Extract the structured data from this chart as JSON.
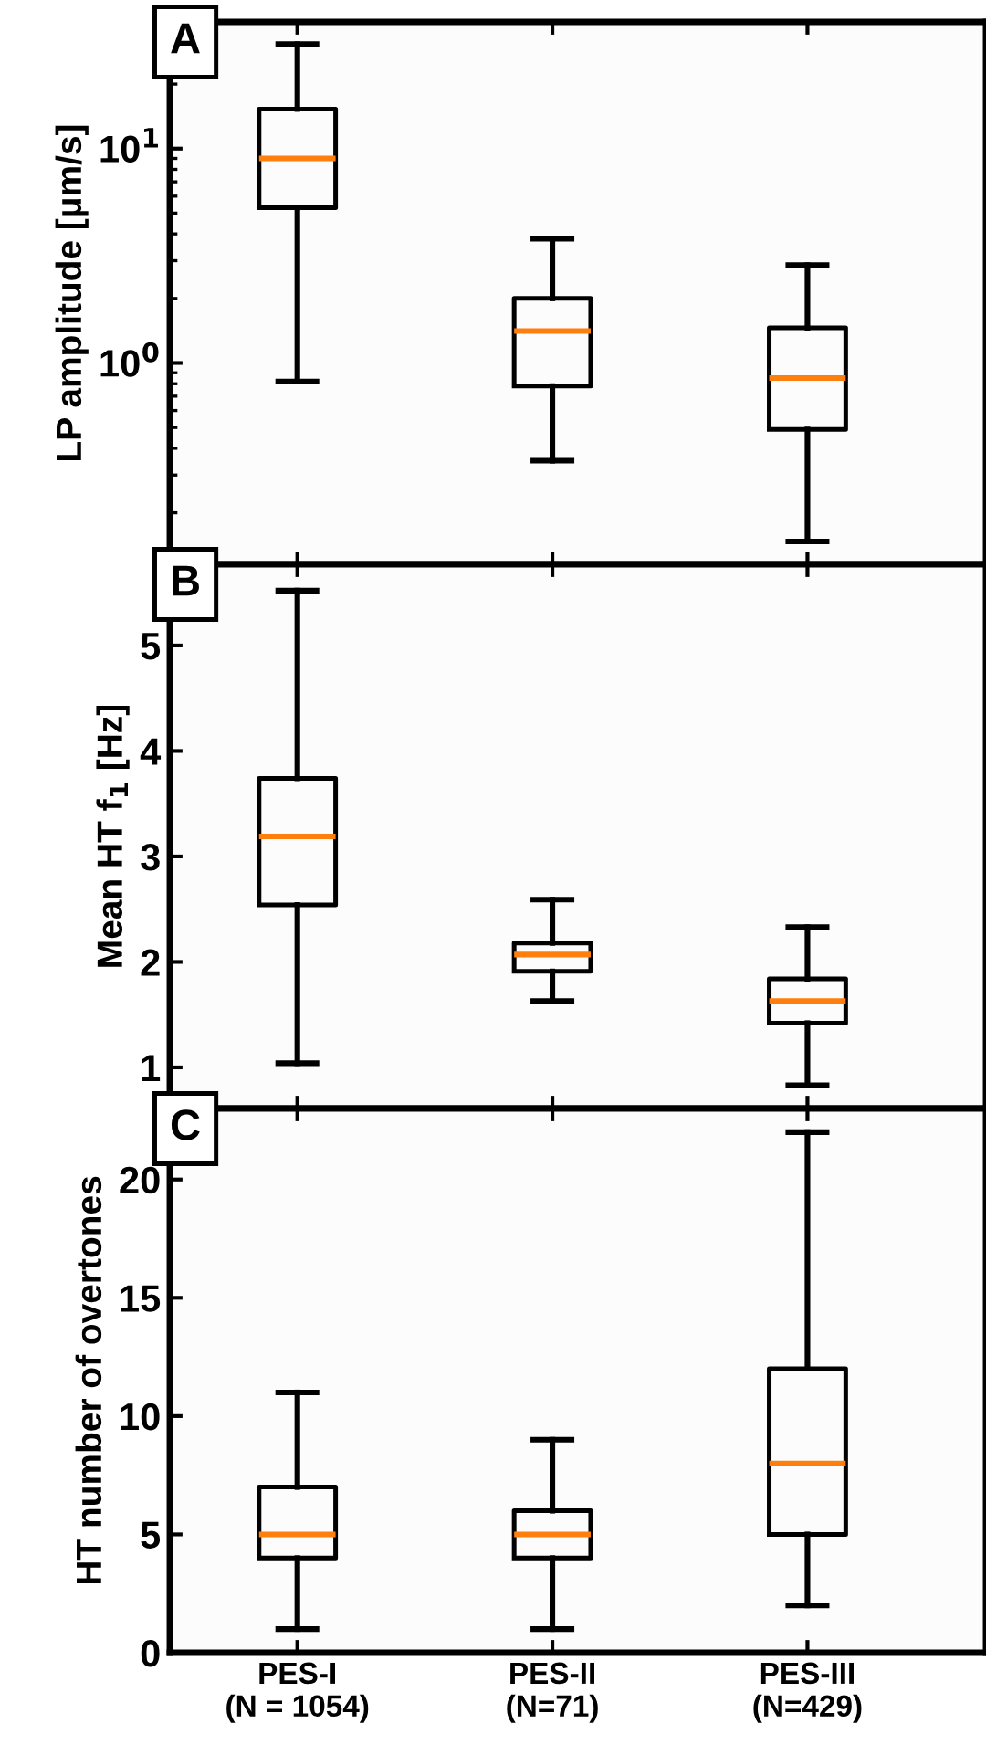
{
  "chart_data": [
    {
      "type": "box",
      "title": "A",
      "ylabel": "LP amplitude [μm/s]",
      "log": "y",
      "categories": [
        null,
        null,
        null
      ],
      "tick_labels": "y",
      "ylim": [
        0.115,
        39
      ],
      "yticks": [
        {
          "value": 1,
          "label": "10$^{0}$"
        },
        {
          "value": 10,
          "label": "10$^{1}$"
        }
      ],
      "grid": false,
      "color": "#000000",
      "boxes": [
        {
          "low": 0.82,
          "q1": 5.3,
          "median": 9.0,
          "q3": 15.3,
          "high": 30.7
        },
        {
          "low": 0.35,
          "q1": 0.78,
          "median": 1.41,
          "q3": 2.0,
          "high": 3.8
        },
        {
          "low": 0.147,
          "q1": 0.49,
          "median": 0.85,
          "q3": 1.46,
          "high": 2.86
        }
      ]
    },
    {
      "type": "box",
      "title": "B",
      "ylabel": "Mean HT f$_{1}$ [Hz]",
      "categories": [
        null,
        null,
        null
      ],
      "tick_labels": "y",
      "ylim": [
        0.61,
        5.77
      ],
      "yticks": [
        1,
        2,
        3,
        4,
        5
      ],
      "grid": false,
      "color": "#000000",
      "boxes": [
        {
          "low": 1.04,
          "q1": 2.54,
          "median": 3.19,
          "q3": 3.74,
          "high": 5.52
        },
        {
          "low": 1.63,
          "q1": 1.91,
          "median": 2.07,
          "q3": 2.18,
          "high": 2.59
        },
        {
          "low": 0.83,
          "q1": 1.42,
          "median": 1.63,
          "q3": 1.84,
          "high": 2.33
        }
      ]
    },
    {
      "type": "box",
      "title": "C",
      "ylabel": "HT number of overtones",
      "categories": [
        "PES-I\n(N = 1054)",
        "PES-II\n(N=71)",
        "PES-III\n(N=429)"
      ],
      "ylim": [
        0,
        23
      ],
      "yticks": [
        0,
        5,
        10,
        15,
        20
      ],
      "grid": false,
      "color": "#000000",
      "boxes": [
        {
          "low": 1,
          "q1": 4,
          "median": 5,
          "q3": 7,
          "high": 11
        },
        {
          "low": 1,
          "q1": 4,
          "median": 5,
          "q3": 6,
          "high": 9
        },
        {
          "low": 2,
          "q1": 5,
          "median": 8,
          "q3": 12,
          "high": 22
        }
      ]
    }
  ]
}
